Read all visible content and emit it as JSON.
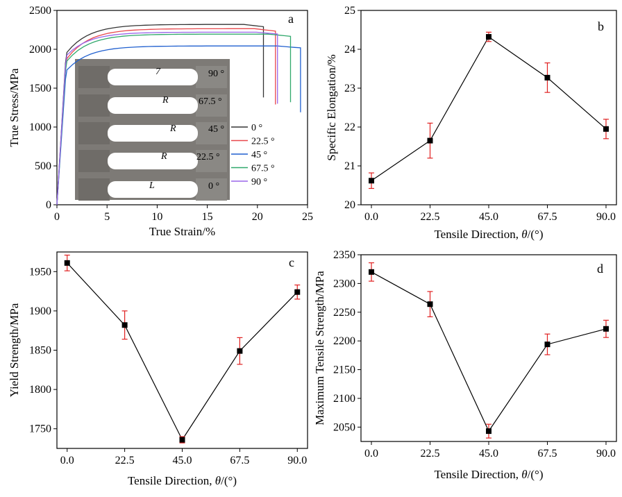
{
  "chart_data": [
    {
      "id": "a",
      "type": "line",
      "panel_label": "a",
      "xlabel": "True Strain/%",
      "ylabel": "True Stress/MPa",
      "xlim": [
        0,
        25
      ],
      "ylim": [
        0,
        2500
      ],
      "xticks": [
        0,
        5,
        10,
        15,
        20,
        25
      ],
      "yticks": [
        0,
        500,
        1000,
        1500,
        2000,
        2500
      ],
      "legend_position": "right",
      "inset_photo_labels": [
        "90 °",
        "67.5 °",
        "45 °",
        "22.5 °",
        "0 °"
      ],
      "series": [
        {
          "name": "0 °",
          "color": "#333333",
          "yield": 1960,
          "max": 2320,
          "fracture_strain": 20.6,
          "final_stress": 1380
        },
        {
          "name": "22.5 °",
          "color": "#e8474b",
          "yield": 1880,
          "max": 2265,
          "fracture_strain": 21.8,
          "final_stress": 1290
        },
        {
          "name": "45 °",
          "color": "#1f5fcf",
          "yield": 1735,
          "max": 2043,
          "fracture_strain": 24.3,
          "final_stress": 1190
        },
        {
          "name": "67.5 °",
          "color": "#2fa86b",
          "yield": 1850,
          "max": 2195,
          "fracture_strain": 23.3,
          "final_stress": 1320
        },
        {
          "name": "90 °",
          "color": "#9a66ea",
          "yield": 1925,
          "max": 2220,
          "fracture_strain": 22.0,
          "final_stress": 1300
        }
      ]
    },
    {
      "id": "b",
      "type": "line",
      "panel_label": "b",
      "xlabel_prefix": "Tensile Direction, ",
      "xlabel_var": "θ",
      "xlabel_suffix": "/(°)",
      "ylabel": "Specific Elongation/%",
      "xlim": [
        -4,
        94
      ],
      "ylim": [
        20,
        25
      ],
      "xticks": [
        "0.0",
        "22.5",
        "45.0",
        "67.5",
        "90.0"
      ],
      "yticks": [
        20,
        21,
        22,
        23,
        24,
        25
      ],
      "x": [
        0,
        22.5,
        45,
        67.5,
        90
      ],
      "y": [
        20.62,
        21.65,
        24.32,
        23.27,
        21.95
      ],
      "error": [
        0.2,
        0.45,
        0.12,
        0.38,
        0.25
      ]
    },
    {
      "id": "c",
      "type": "line",
      "panel_label": "c",
      "xlabel_prefix": "Tensile Direction, ",
      "xlabel_var": "θ",
      "xlabel_suffix": "/(°)",
      "ylabel": "Yield Strength/MPa",
      "xlim": [
        -4,
        94
      ],
      "ylim": [
        1725,
        1975
      ],
      "xticks": [
        "0.0",
        "22.5",
        "45.0",
        "67.5",
        "90.0"
      ],
      "yticks": [
        1750,
        1800,
        1850,
        1900,
        1950
      ],
      "x": [
        0,
        22.5,
        45,
        67.5,
        90
      ],
      "y": [
        1961,
        1882,
        1736,
        1849,
        1924
      ],
      "error": [
        10,
        18,
        4,
        17,
        9
      ]
    },
    {
      "id": "d",
      "type": "line",
      "panel_label": "d",
      "xlabel_prefix": "Tensile Direction, ",
      "xlabel_var": "θ",
      "xlabel_suffix": "/(°)",
      "ylabel": "Maximum Tensile Strength/MPa",
      "xlim": [
        -4,
        94
      ],
      "ylim": [
        2025,
        2350
      ],
      "xticks": [
        "0.0",
        "22.5",
        "45.0",
        "67.5",
        "90.0"
      ],
      "yticks": [
        2050,
        2100,
        2150,
        2200,
        2250,
        2300,
        2350
      ],
      "x": [
        0,
        22.5,
        45,
        67.5,
        90
      ],
      "y": [
        2320,
        2264,
        2043,
        2194,
        2221
      ],
      "error": [
        16,
        22,
        12,
        18,
        15
      ]
    }
  ]
}
